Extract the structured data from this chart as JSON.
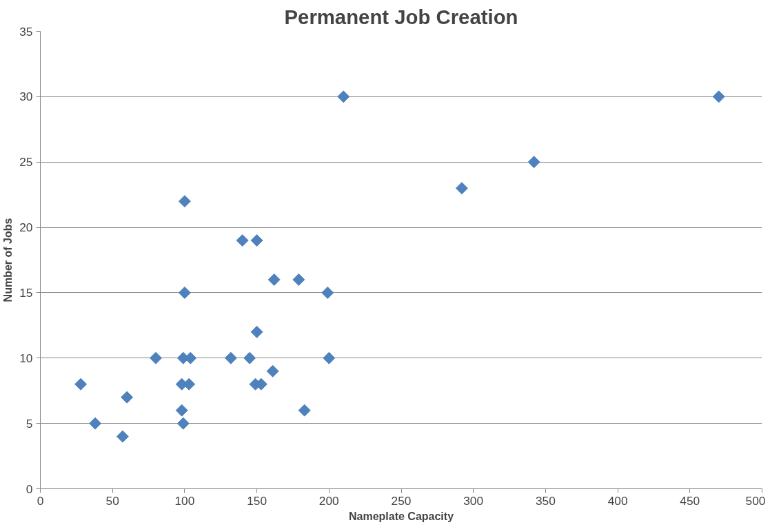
{
  "chart_data": {
    "type": "scatter",
    "title": "Permanent Job Creation",
    "xlabel": "Nameplate Capacity",
    "ylabel": "Number of Jobs",
    "x": [
      28,
      38,
      57,
      60,
      80,
      100,
      100,
      99,
      98,
      103,
      98,
      99,
      104,
      132,
      140,
      150,
      162,
      150,
      145,
      149,
      153,
      161,
      179,
      183,
      199,
      200,
      210,
      292,
      342,
      470
    ],
    "series": [
      {
        "color": "#4f81bd",
        "values": [
          8,
          5,
          4,
          7,
          10,
          22,
          15,
          10,
          8,
          8,
          6,
          5,
          10,
          10,
          19,
          19,
          16,
          12,
          10,
          8,
          8,
          9,
          16,
          6,
          15,
          10,
          30,
          23,
          25,
          30
        ]
      }
    ],
    "xlim": [
      0,
      500
    ],
    "xticks": [
      0,
      50,
      100,
      150,
      200,
      250,
      300,
      350,
      400,
      450,
      500
    ],
    "ylim": [
      0,
      35
    ],
    "yticks": [
      0,
      5,
      10,
      15,
      20,
      25,
      30,
      35
    ],
    "grid": "y",
    "marker": "diamond"
  }
}
